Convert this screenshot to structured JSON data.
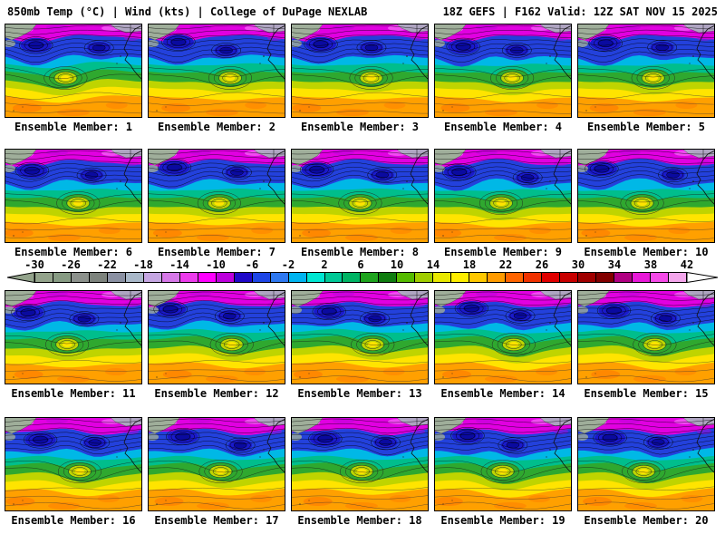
{
  "header": {
    "left": "850mb Temp (°C) | Wind (kts) | College of DuPage NEXLAB",
    "right": "18Z GEFS | F162 Valid: 12Z SAT NOV 15 2025"
  },
  "panels": [
    {
      "member": 1,
      "label": "Ensemble Member: 1"
    },
    {
      "member": 2,
      "label": "Ensemble Member: 2"
    },
    {
      "member": 3,
      "label": "Ensemble Member: 3"
    },
    {
      "member": 4,
      "label": "Ensemble Member: 4"
    },
    {
      "member": 5,
      "label": "Ensemble Member: 5"
    },
    {
      "member": 6,
      "label": "Ensemble Member: 6"
    },
    {
      "member": 7,
      "label": "Ensemble Member: 7"
    },
    {
      "member": 8,
      "label": "Ensemble Member: 8"
    },
    {
      "member": 9,
      "label": "Ensemble Member: 9"
    },
    {
      "member": 10,
      "label": "Ensemble Member: 10"
    },
    {
      "member": 11,
      "label": "Ensemble Member: 11"
    },
    {
      "member": 12,
      "label": "Ensemble Member: 12"
    },
    {
      "member": 13,
      "label": "Ensemble Member: 13"
    },
    {
      "member": 14,
      "label": "Ensemble Member: 14"
    },
    {
      "member": 15,
      "label": "Ensemble Member: 15"
    },
    {
      "member": 16,
      "label": "Ensemble Member: 16"
    },
    {
      "member": 17,
      "label": "Ensemble Member: 17"
    },
    {
      "member": 18,
      "label": "Ensemble Member: 18"
    },
    {
      "member": 19,
      "label": "Ensemble Member: 19"
    },
    {
      "member": 20,
      "label": "Ensemble Member: 20"
    }
  ],
  "colorbar": {
    "unit": "°C",
    "min": -30,
    "max": 42,
    "step_per_segment": 2,
    "tick_values": [
      -30,
      -26,
      -22,
      -18,
      -14,
      -10,
      -6,
      -2,
      2,
      6,
      10,
      14,
      18,
      22,
      26,
      30,
      34,
      38,
      42
    ],
    "segment_colors": [
      "#93A38B",
      "#879B83",
      "#8C918C",
      "#7D837D",
      "#8A90A2",
      "#A9B8C9",
      "#C5A6E2",
      "#D678E8",
      "#EC3BEC",
      "#FF00FF",
      "#BC00DC",
      "#2008C8",
      "#1E46E6",
      "#2E78F0",
      "#00B4F0",
      "#00E6D2",
      "#00C896",
      "#00B464",
      "#1EA41E",
      "#0F7D0F",
      "#55BB00",
      "#A0CD00",
      "#E8E800",
      "#FFEE00",
      "#FFC800",
      "#FF9B00",
      "#FF6400",
      "#F03200",
      "#E00000",
      "#C80000",
      "#A00000",
      "#820000",
      "#B00082",
      "#E818D8",
      "#F54AE8",
      "#F4A6EC"
    ],
    "left_arrow_color": "#93A38B",
    "right_arrow_color": "#FFFFFF"
  },
  "map_colors": {
    "orange": "#FFA000",
    "deep_orange": "#FF7D00",
    "yellow": "#FFE400",
    "yellow_green": "#BFD400",
    "green": "#2FA82F",
    "teal": "#00BE8C",
    "cyan": "#00B8E6",
    "blue": "#2341DC",
    "dark_blue": "#1A1ACC",
    "navy": "#0A0AA0",
    "magenta": "#E100E1",
    "pink": "#FF7BFF",
    "purple": "#BC00DC",
    "gray_nw": "#9FAE9A",
    "gray_ne": "#A9B6BE",
    "contour": "#000000",
    "coast": "#101010"
  }
}
